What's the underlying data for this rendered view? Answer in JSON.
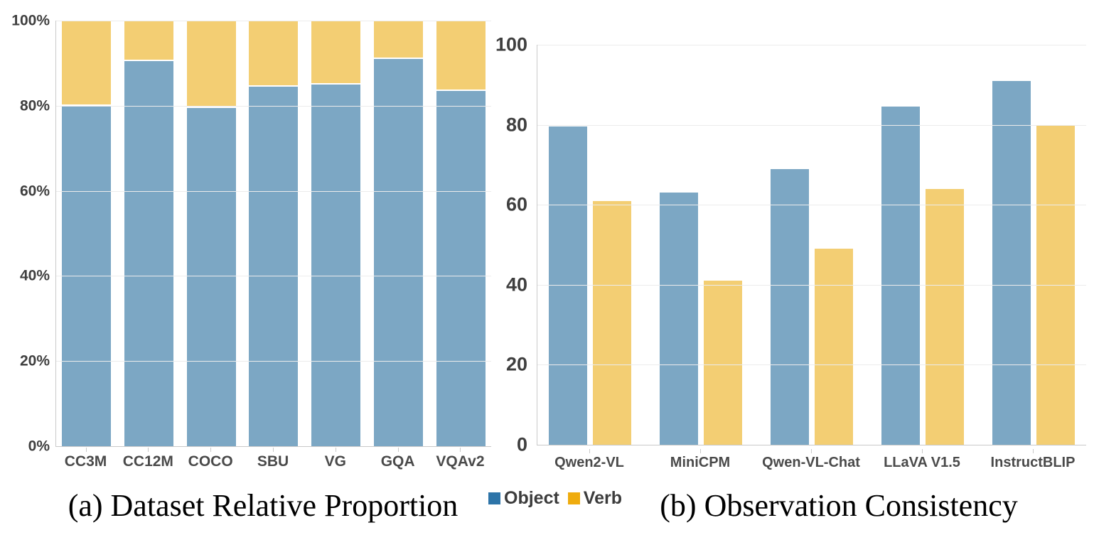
{
  "legend": {
    "items": [
      {
        "label": "Object",
        "color": "#2D74A8"
      },
      {
        "label": "Verb",
        "color": "#EFAC0E"
      }
    ]
  },
  "colors": {
    "object_bar": "#7CA7C4",
    "verb_bar": "#F3CE73",
    "grid_line": "#ECECEC",
    "axis_line": "#C9C9C9",
    "tick_text": "#3F3F3F",
    "category_text": "#4A4A4A",
    "caption_text": "#000000",
    "background": "#FFFFFF"
  },
  "chart_data": [
    {
      "id": "dataset-relative-proportion",
      "type": "bar",
      "stacked": true,
      "title": "(a) Dataset Relative Proportion",
      "categories": [
        "CC3M",
        "CC12M",
        "COCO",
        "SBU",
        "VG",
        "GQA",
        "VQAv2"
      ],
      "series": [
        {
          "name": "Object",
          "color": "#7CA7C4",
          "values": [
            80,
            90.5,
            79.5,
            84.5,
            85,
            91,
            83.5
          ]
        },
        {
          "name": "Verb",
          "color": "#F3CE73",
          "values": [
            20,
            9.5,
            20.5,
            15.5,
            15,
            9,
            16.5
          ]
        }
      ],
      "yticks": [
        "100%",
        "80%",
        "60%",
        "40%",
        "20%",
        "0%"
      ],
      "ylim": [
        0,
        100
      ],
      "grid": true,
      "legend_position": "shared-bottom-center"
    },
    {
      "id": "observation-consistency",
      "type": "bar",
      "stacked": false,
      "title": "(b) Observation Consistency",
      "categories": [
        "Qwen2-VL",
        "MiniCPM",
        "Qwen-VL-Chat",
        "LLaVA V1.5",
        "InstructBLIP"
      ],
      "series": [
        {
          "name": "Object",
          "color": "#7CA7C4",
          "values": [
            79.5,
            63,
            69,
            84.5,
            91
          ]
        },
        {
          "name": "Verb",
          "color": "#F3CE73",
          "values": [
            61,
            41,
            49,
            64,
            80
          ]
        }
      ],
      "yticks": [
        "100",
        "80",
        "60",
        "40",
        "20",
        "0"
      ],
      "ylim": [
        0,
        100
      ],
      "grid": true,
      "legend_position": "shared-bottom-center"
    }
  ]
}
